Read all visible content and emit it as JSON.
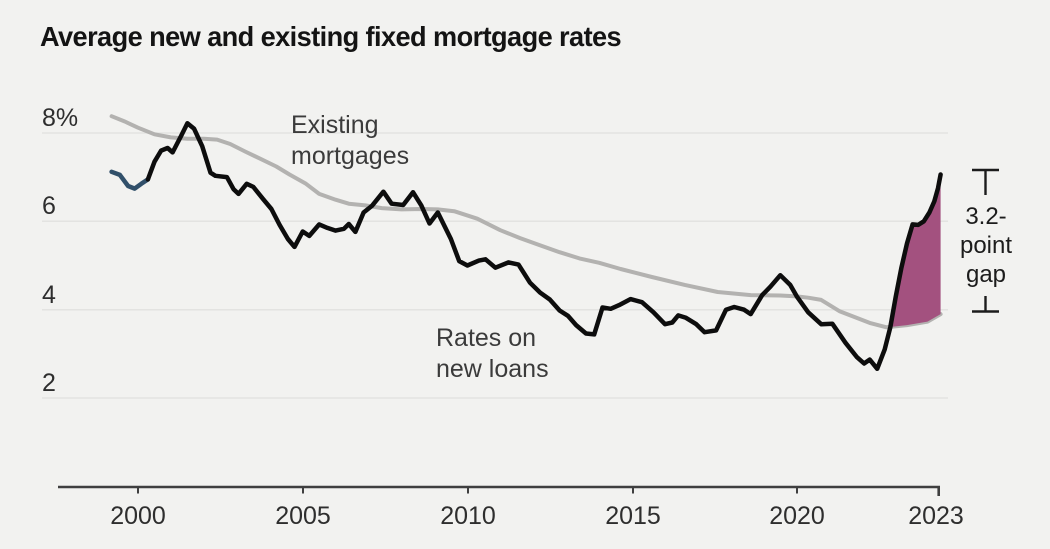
{
  "title": "Average new and existing fixed mortgage rates",
  "y_axis": {
    "tick_labels": [
      "8%",
      "6",
      "4",
      "2"
    ]
  },
  "x_axis": {
    "tick_labels": [
      "2000",
      "2005",
      "2010",
      "2015",
      "2020",
      "2023"
    ]
  },
  "labels": {
    "existing_line1": "Existing",
    "existing_line2": "mortgages",
    "new_line1": "Rates on",
    "new_line2": "new loans"
  },
  "gap_annotation": {
    "line1": "3.2-",
    "line2": "point",
    "line3": "gap",
    "full_text": "3.2-point gap",
    "gap_points": 3.2
  },
  "colors": {
    "background": "#f2f2f0",
    "gridline": "#e3e3e1",
    "axis": "#3f3f3f",
    "existing_line": "#b3b2b0",
    "new_loans_line": "#0d0d0d",
    "new_loans_early_segment": "#31506a",
    "gap_fill": "#a3517f",
    "annotation_bracket": "#1c1c1c"
  },
  "chart_data": {
    "type": "line",
    "title": "Average new and existing fixed mortgage rates",
    "xlabel": "",
    "ylabel": "",
    "x_ticks": [
      2000,
      2005,
      2010,
      2015,
      2020,
      2023
    ],
    "y_ticks": [
      2,
      4,
      6,
      8
    ],
    "xlim": [
      1999.2,
      2023.85
    ],
    "ylim": [
      0,
      8.6
    ],
    "grid": "horizontal",
    "legend_position": "inline-labels",
    "series": [
      {
        "name": "Existing mortgages",
        "color": "#b3b2b0",
        "points": [
          [
            1999.2,
            8.38
          ],
          [
            1999.6,
            8.26
          ],
          [
            2000.0,
            8.12
          ],
          [
            2000.5,
            7.97
          ],
          [
            2001.0,
            7.9
          ],
          [
            2001.5,
            7.87
          ],
          [
            2002.0,
            7.87
          ],
          [
            2002.4,
            7.85
          ],
          [
            2002.8,
            7.75
          ],
          [
            2003.25,
            7.58
          ],
          [
            2003.7,
            7.42
          ],
          [
            2004.2,
            7.24
          ],
          [
            2004.6,
            7.06
          ],
          [
            2005.1,
            6.85
          ],
          [
            2005.5,
            6.62
          ],
          [
            2006.0,
            6.49
          ],
          [
            2006.4,
            6.4
          ],
          [
            2006.9,
            6.36
          ],
          [
            2007.4,
            6.3
          ],
          [
            2008.0,
            6.27
          ],
          [
            2008.6,
            6.28
          ],
          [
            2009.1,
            6.27
          ],
          [
            2009.6,
            6.23
          ],
          [
            2010.3,
            6.06
          ],
          [
            2011.0,
            5.8
          ],
          [
            2011.6,
            5.62
          ],
          [
            2012.2,
            5.46
          ],
          [
            2012.8,
            5.3
          ],
          [
            2013.4,
            5.16
          ],
          [
            2014.0,
            5.06
          ],
          [
            2014.65,
            4.92
          ],
          [
            2015.6,
            4.74
          ],
          [
            2016.6,
            4.56
          ],
          [
            2017.6,
            4.4
          ],
          [
            2018.6,
            4.33
          ],
          [
            2019.5,
            4.32
          ],
          [
            2020.0,
            4.3
          ],
          [
            2020.3,
            4.27
          ],
          [
            2020.65,
            4.22
          ],
          [
            2021.15,
            3.96
          ],
          [
            2021.95,
            3.7
          ],
          [
            2022.4,
            3.6
          ],
          [
            2022.95,
            3.65
          ],
          [
            2023.5,
            3.73
          ],
          [
            2023.85,
            3.9
          ]
        ]
      },
      {
        "name": "Rates on new loans (early segment)",
        "color": "#31506a",
        "points": [
          [
            1999.2,
            7.12
          ],
          [
            1999.45,
            7.05
          ],
          [
            1999.7,
            6.8
          ],
          [
            1999.9,
            6.74
          ],
          [
            2000.1,
            6.85
          ],
          [
            2000.3,
            6.95
          ]
        ]
      },
      {
        "name": "Rates on new loans",
        "color": "#0d0d0d",
        "points": [
          [
            2000.3,
            6.95
          ],
          [
            2000.5,
            7.35
          ],
          [
            2000.7,
            7.6
          ],
          [
            2000.9,
            7.66
          ],
          [
            2001.05,
            7.56
          ],
          [
            2001.3,
            7.92
          ],
          [
            2001.5,
            8.22
          ],
          [
            2001.7,
            8.1
          ],
          [
            2001.95,
            7.7
          ],
          [
            2002.2,
            7.1
          ],
          [
            2002.35,
            7.03
          ],
          [
            2002.7,
            7.0
          ],
          [
            2002.9,
            6.73
          ],
          [
            2003.05,
            6.62
          ],
          [
            2003.3,
            6.85
          ],
          [
            2003.5,
            6.78
          ],
          [
            2003.8,
            6.5
          ],
          [
            2004.05,
            6.28
          ],
          [
            2004.3,
            5.92
          ],
          [
            2004.55,
            5.6
          ],
          [
            2004.75,
            5.42
          ],
          [
            2005.0,
            5.77
          ],
          [
            2005.2,
            5.67
          ],
          [
            2005.5,
            5.93
          ],
          [
            2005.75,
            5.85
          ],
          [
            2006.0,
            5.79
          ],
          [
            2006.25,
            5.83
          ],
          [
            2006.4,
            5.94
          ],
          [
            2006.6,
            5.76
          ],
          [
            2006.85,
            6.2
          ],
          [
            2007.1,
            6.35
          ],
          [
            2007.45,
            6.67
          ],
          [
            2007.7,
            6.4
          ],
          [
            2008.05,
            6.37
          ],
          [
            2008.35,
            6.66
          ],
          [
            2008.6,
            6.36
          ],
          [
            2008.85,
            5.95
          ],
          [
            2009.1,
            6.2
          ],
          [
            2009.5,
            5.6
          ],
          [
            2009.75,
            5.1
          ],
          [
            2010.0,
            5.0
          ],
          [
            2010.35,
            5.11
          ],
          [
            2010.55,
            5.14
          ],
          [
            2010.85,
            4.95
          ],
          [
            2011.25,
            5.07
          ],
          [
            2011.55,
            5.02
          ],
          [
            2011.9,
            4.61
          ],
          [
            2012.2,
            4.39
          ],
          [
            2012.5,
            4.23
          ],
          [
            2012.8,
            3.98
          ],
          [
            2013.05,
            3.86
          ],
          [
            2013.3,
            3.65
          ],
          [
            2013.6,
            3.46
          ],
          [
            2013.85,
            3.44
          ],
          [
            2014.1,
            4.05
          ],
          [
            2014.35,
            4.02
          ],
          [
            2014.6,
            4.1
          ],
          [
            2014.95,
            4.24
          ],
          [
            2015.3,
            4.17
          ],
          [
            2015.65,
            3.94
          ],
          [
            2016.0,
            3.67
          ],
          [
            2016.22,
            3.71
          ],
          [
            2016.4,
            3.87
          ],
          [
            2016.62,
            3.82
          ],
          [
            2016.95,
            3.67
          ],
          [
            2017.2,
            3.49
          ],
          [
            2017.55,
            3.53
          ],
          [
            2017.85,
            4.0
          ],
          [
            2018.1,
            4.06
          ],
          [
            2018.4,
            4.0
          ],
          [
            2018.6,
            3.9
          ],
          [
            2018.95,
            4.33
          ],
          [
            2019.2,
            4.52
          ],
          [
            2019.5,
            4.78
          ],
          [
            2019.8,
            4.56
          ],
          [
            2020.0,
            4.3
          ],
          [
            2020.3,
            3.94
          ],
          [
            2020.65,
            3.67
          ],
          [
            2020.95,
            3.68
          ],
          [
            2021.3,
            3.25
          ],
          [
            2021.6,
            2.93
          ],
          [
            2021.8,
            2.78
          ],
          [
            2021.95,
            2.87
          ],
          [
            2022.15,
            2.66
          ],
          [
            2022.35,
            3.1
          ],
          [
            2022.5,
            3.6
          ],
          [
            2022.65,
            4.3
          ],
          [
            2022.8,
            4.95
          ],
          [
            2022.95,
            5.5
          ],
          [
            2023.1,
            5.93
          ],
          [
            2023.25,
            5.92
          ],
          [
            2023.4,
            6.0
          ],
          [
            2023.55,
            6.2
          ],
          [
            2023.68,
            6.45
          ],
          [
            2023.78,
            6.75
          ],
          [
            2023.85,
            7.06
          ]
        ]
      }
    ],
    "annotation": {
      "label": "3.2-point gap",
      "gap_points": 3.2,
      "fill_color": "#a3517f",
      "fill_from_year": 2022.46
    }
  }
}
